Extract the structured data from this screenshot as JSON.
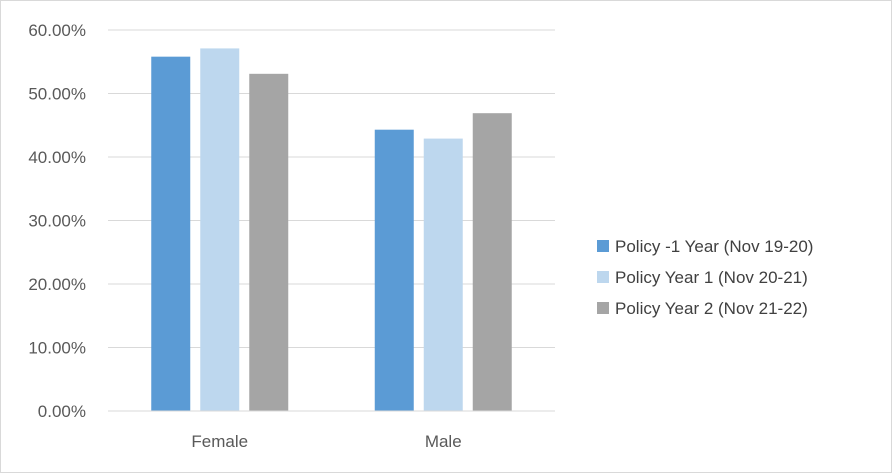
{
  "chart_data": {
    "type": "bar",
    "categories": [
      "Female",
      "Male"
    ],
    "series": [
      {
        "name": "Policy -1 Year (Nov 19-20)",
        "values": [
          0.558,
          0.443
        ],
        "color": "#5b9bd5"
      },
      {
        "name": "Policy Year 1 (Nov 20-21)",
        "values": [
          0.571,
          0.429
        ],
        "color": "#bdd7ee"
      },
      {
        "name": "Policy Year 2 (Nov 21-22)",
        "values": [
          0.531,
          0.469
        ],
        "color": "#a5a5a5"
      }
    ],
    "y_ticks": [
      "0.00%",
      "10.00%",
      "20.00%",
      "30.00%",
      "40.00%",
      "50.00%",
      "60.00%"
    ],
    "ylim": [
      0,
      0.6
    ],
    "title": "",
    "xlabel": "",
    "ylabel": "",
    "grid": true,
    "legend_position": "right"
  }
}
